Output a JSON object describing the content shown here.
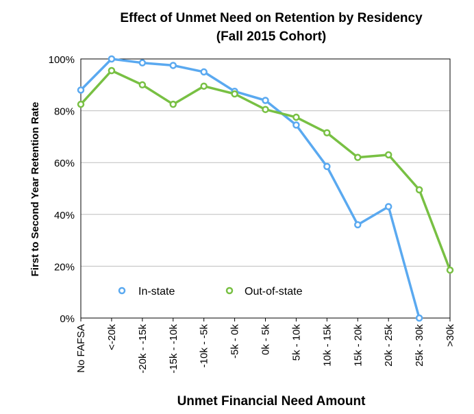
{
  "chart_data": {
    "type": "line",
    "title": "Effect of Unmet Need on Retention by Residency",
    "subtitle": "(Fall 2015 Cohort)",
    "xlabel": "Unmet Financial Need Amount",
    "ylabel": "First to Second Year Retention Rate",
    "ylim": [
      0,
      100
    ],
    "yticks": [
      "0%",
      "20%",
      "40%",
      "60%",
      "80%",
      "100%"
    ],
    "grid": true,
    "legend_position": "bottom-left",
    "categories": [
      "No FAFSA",
      "<-20k",
      "-20k - -15k",
      "-15k - -10k",
      "-10k - -5k",
      "-5k - 0k",
      "0k - 5k",
      "5k - 10k",
      "10k - 15k",
      "15k - 20k",
      "20k - 25k",
      "25k - 30k",
      ">30k"
    ],
    "series": [
      {
        "name": "In-state",
        "color": "#5aa9f0",
        "values": [
          88,
          100,
          98.5,
          97.5,
          95,
          87.5,
          84,
          74.5,
          58.5,
          36,
          43,
          0,
          null
        ]
      },
      {
        "name": "Out-of-state",
        "color": "#78c043",
        "values": [
          82.5,
          95.5,
          90,
          82.5,
          89.5,
          86.5,
          80.5,
          77.5,
          71.5,
          62,
          63,
          49.5,
          18.5
        ]
      }
    ]
  }
}
